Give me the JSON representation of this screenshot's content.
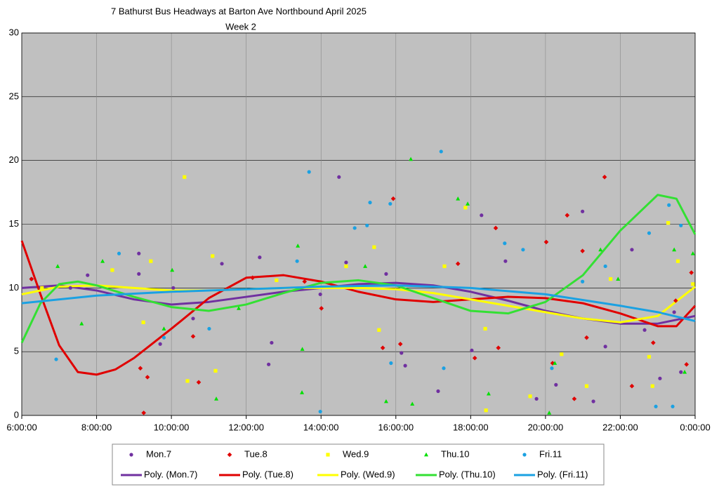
{
  "chart_data": {
    "type": "scatter",
    "title": "7 Bathurst Bus Headways at Barton Ave Northbound April 2025",
    "subtitle": "Week 2",
    "xlim": [
      6,
      24
    ],
    "ylim": [
      0,
      30
    ],
    "xticks": [
      {
        "value": 6,
        "label": "6:00:00"
      },
      {
        "value": 8,
        "label": "8:00:00"
      },
      {
        "value": 10,
        "label": "10:00:00"
      },
      {
        "value": 12,
        "label": "12:00:00"
      },
      {
        "value": 14,
        "label": "14:00:00"
      },
      {
        "value": 16,
        "label": "16:00:00"
      },
      {
        "value": 18,
        "label": "18:00:00"
      },
      {
        "value": 20,
        "label": "20:00:00"
      },
      {
        "value": 22,
        "label": "22:00:00"
      },
      {
        "value": 24,
        "label": "0:00:00"
      }
    ],
    "yticks": [
      0,
      5,
      10,
      15,
      20,
      25,
      30
    ],
    "grid": true,
    "plot_background": "#c0c0c0",
    "legend": "bottom",
    "series": [
      {
        "name": "Mon.7",
        "type": "scatter",
        "marker": "circle",
        "color": "#7030a0",
        "x": [
          6.26,
          7.3,
          7.76,
          9.13,
          9.13,
          9.7,
          10.05,
          10.58,
          11.35,
          12.36,
          12.6,
          12.68,
          13.98,
          14.48,
          14.67,
          15.74,
          16.15,
          16.25,
          17.13,
          18.03,
          18.29,
          18.93,
          19.76,
          20.28,
          20.99,
          21.28,
          21.6,
          22.31,
          22.65,
          23.06,
          23.44,
          23.62
        ],
        "values": [
          10.7,
          10.0,
          11.0,
          11.1,
          12.7,
          5.6,
          10.0,
          7.6,
          11.9,
          12.4,
          4.0,
          5.7,
          9.5,
          18.7,
          12.0,
          11.1,
          4.9,
          3.9,
          1.9,
          5.1,
          15.7,
          12.1,
          1.3,
          2.4,
          16.0,
          1.1,
          5.4,
          13.0,
          6.7,
          2.9,
          8.1,
          3.4
        ]
      },
      {
        "name": "Tue.8",
        "type": "scatter",
        "marker": "diamond",
        "color": "#e00000",
        "x": [
          6.26,
          9.17,
          9.26,
          9.36,
          10.58,
          10.73,
          12.17,
          13.56,
          14.01,
          15.65,
          15.93,
          16.12,
          17.66,
          18.11,
          18.67,
          18.74,
          20.02,
          20.19,
          20.58,
          20.77,
          20.99,
          21.1,
          21.58,
          22.31,
          22.88,
          23.48,
          23.77,
          23.9
        ],
        "values": [
          10.7,
          3.7,
          0.2,
          3.0,
          6.2,
          2.6,
          10.8,
          10.5,
          8.4,
          5.3,
          17.0,
          5.6,
          11.9,
          4.5,
          14.7,
          5.3,
          13.6,
          4.1,
          15.7,
          1.3,
          12.9,
          6.1,
          18.7,
          2.3,
          5.7,
          9.0,
          4.0,
          11.2
        ]
      },
      {
        "name": "Wed.9",
        "type": "scatter",
        "marker": "square",
        "color": "#ffff00",
        "x": [
          6.54,
          8.42,
          9.25,
          9.45,
          10.35,
          10.43,
          11.1,
          11.18,
          12.81,
          14.67,
          15.42,
          15.55,
          17.3,
          17.86,
          18.41,
          18.39,
          19.59,
          20.43,
          21.1,
          21.74,
          22.77,
          22.86,
          23.28,
          23.54,
          23.94
        ],
        "values": [
          10.0,
          11.4,
          7.3,
          12.1,
          18.7,
          2.7,
          12.5,
          3.5,
          10.6,
          11.7,
          13.2,
          6.7,
          11.7,
          16.3,
          0.4,
          6.8,
          1.5,
          4.8,
          2.3,
          10.7,
          4.6,
          2.3,
          15.1,
          12.1,
          10.3
        ]
      },
      {
        "name": "Thu.10",
        "type": "scatter",
        "marker": "triangle",
        "color": "#00e000",
        "x": [
          6.96,
          7.6,
          8.16,
          9.8,
          10.02,
          11.2,
          11.8,
          13.38,
          13.5,
          13.49,
          15.18,
          15.74,
          16.4,
          16.44,
          17.66,
          17.92,
          18.48,
          20.1,
          20.25,
          21.47,
          21.94,
          23.44,
          23.72,
          23.94
        ],
        "values": [
          11.7,
          7.2,
          12.1,
          6.8,
          11.4,
          1.3,
          8.4,
          13.3,
          5.2,
          1.8,
          11.7,
          1.1,
          20.1,
          0.9,
          17.0,
          16.6,
          1.7,
          0.2,
          4.1,
          13.0,
          10.7,
          13.0,
          3.4,
          12.7
        ]
      },
      {
        "name": "Fri.11",
        "type": "scatter",
        "marker": "circle",
        "color": "#1ba1e2",
        "x": [
          6.92,
          8.6,
          9.8,
          11.01,
          13.36,
          13.68,
          13.98,
          14.9,
          15.23,
          15.31,
          15.85,
          15.87,
          17.21,
          17.28,
          18.91,
          19.4,
          20.17,
          20.99,
          21.6,
          22.95,
          22.77,
          23.3,
          23.4,
          23.62
        ],
        "values": [
          4.4,
          12.7,
          6.1,
          6.8,
          12.1,
          19.1,
          0.3,
          14.7,
          14.9,
          16.7,
          16.6,
          4.1,
          20.7,
          3.7,
          13.5,
          13.0,
          3.7,
          10.5,
          11.7,
          0.7,
          14.3,
          16.5,
          0.7,
          14.9
        ]
      },
      {
        "name": "Poly. (Mon.7)",
        "type": "line",
        "color": "#7030a0",
        "x": [
          6,
          7,
          8,
          9,
          10,
          11,
          12,
          13,
          14,
          15,
          16,
          17,
          18,
          19,
          20,
          21,
          22,
          23,
          24
        ],
        "values": [
          10.0,
          10.2,
          9.8,
          9.1,
          8.7,
          8.9,
          9.3,
          9.7,
          10.0,
          10.3,
          10.4,
          10.2,
          9.7,
          9.0,
          8.2,
          7.6,
          7.2,
          7.2,
          7.8
        ]
      },
      {
        "name": "Poly. (Tue.8)",
        "type": "line",
        "color": "#e00000",
        "x": [
          6,
          6.5,
          7,
          7.5,
          8,
          8.5,
          9,
          10,
          11,
          12,
          13,
          14,
          15,
          16,
          17,
          18,
          19,
          20,
          21,
          22,
          23,
          23.5,
          24
        ],
        "values": [
          13.7,
          9.5,
          5.5,
          3.4,
          3.2,
          3.6,
          4.5,
          6.8,
          9.2,
          10.8,
          11.0,
          10.5,
          9.7,
          9.1,
          8.9,
          9.1,
          9.3,
          9.2,
          8.8,
          8.0,
          7.0,
          7.0,
          8.6
        ]
      },
      {
        "name": "Poly. (Wed.9)",
        "type": "line",
        "color": "#ffff00",
        "x": [
          6,
          7,
          8,
          9,
          10,
          11,
          12,
          13,
          14,
          15,
          16,
          17,
          18,
          19,
          20,
          21,
          22,
          23,
          24
        ],
        "values": [
          9.5,
          10.1,
          10.2,
          10.0,
          9.8,
          9.8,
          9.9,
          10.0,
          10.0,
          10.0,
          9.9,
          9.6,
          9.1,
          8.6,
          8.1,
          7.6,
          7.3,
          7.8,
          10.1
        ]
      },
      {
        "name": "Poly. (Thu.10)",
        "type": "line",
        "color": "#33e033",
        "x": [
          6,
          6.5,
          7,
          7.5,
          8,
          9,
          10,
          11,
          12,
          13,
          14,
          15,
          16,
          17,
          18,
          19,
          20,
          21,
          22,
          23,
          23.5,
          24
        ],
        "values": [
          5.7,
          8.8,
          10.3,
          10.5,
          10.2,
          9.3,
          8.5,
          8.2,
          8.7,
          9.6,
          10.4,
          10.6,
          10.2,
          9.2,
          8.2,
          8.0,
          8.9,
          11.0,
          14.5,
          17.3,
          17.0,
          14.2
        ]
      },
      {
        "name": "Poly. (Fri.11)",
        "type": "line",
        "color": "#1ba1e2",
        "x": [
          6,
          8,
          10,
          12,
          14,
          16,
          18,
          20,
          22,
          23,
          24
        ],
        "values": [
          8.8,
          9.4,
          9.7,
          9.9,
          10.1,
          10.2,
          10.0,
          9.5,
          8.6,
          8.1,
          7.4
        ]
      }
    ]
  }
}
